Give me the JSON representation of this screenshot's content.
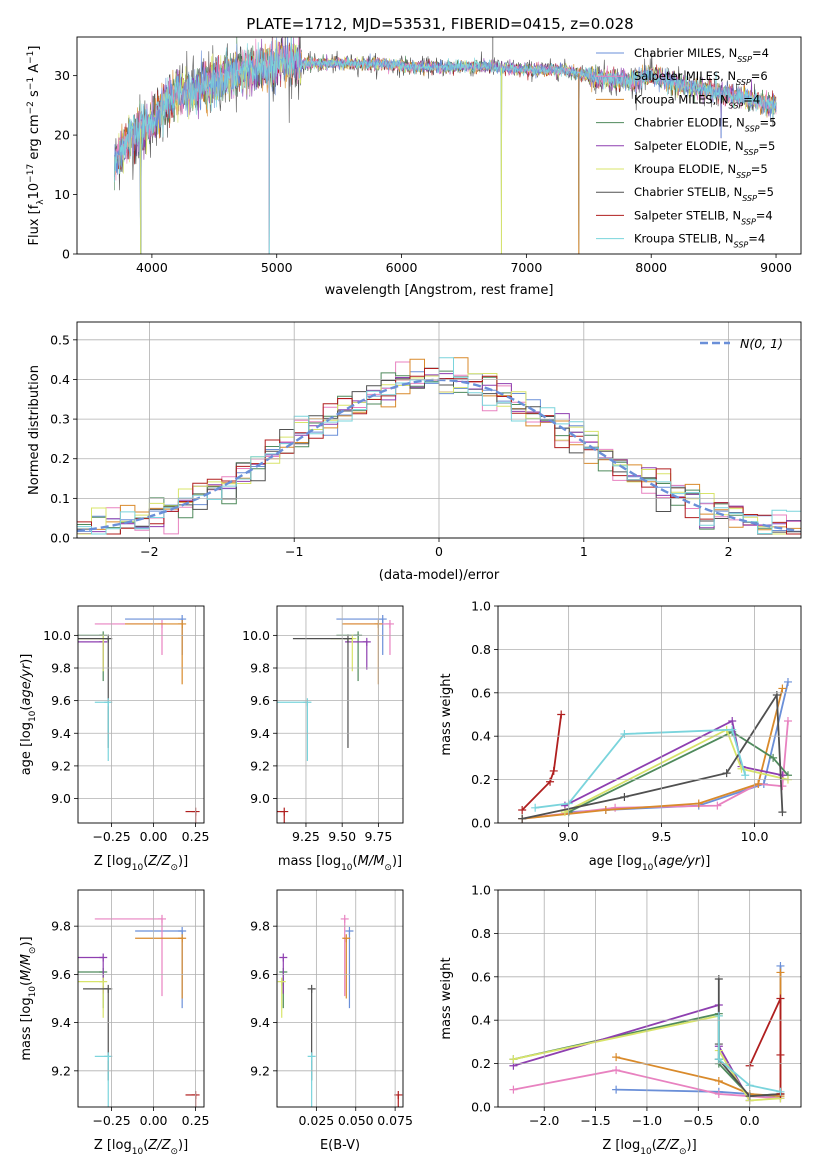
{
  "figure": {
    "title": "PLATE=1712, MJD=53531, FIBERID=0415, z=0.028"
  },
  "chart_data": [
    {
      "id": "spectrum",
      "type": "line",
      "xlabel": "wavelength [Angstrom, rest frame]",
      "ylabel": "Flux [f_λ 10^-17 erg cm^-2 s^-1 A^-1]",
      "xlim": [
        3400,
        9200
      ],
      "ylim": [
        0,
        36.5
      ],
      "xticks": [
        4000,
        5000,
        6000,
        7000,
        8000,
        9000
      ],
      "yticks": [
        0,
        10,
        20,
        30
      ],
      "grid": false,
      "legend_position": "top-right",
      "legend": [
        {
          "label": "Chabrier MILES, N",
          "sub": "SSP",
          "tail": "=4",
          "color": "#6a8fd8"
        },
        {
          "label": "Salpeter MILES, N",
          "sub": "SSP",
          "tail": "=6",
          "color": "#e882c0"
        },
        {
          "label": "Kroupa MILES, N",
          "sub": "SSP",
          "tail": "=4",
          "color": "#d98a2b"
        },
        {
          "label": "Chabrier ELODIE, N",
          "sub": "SSP",
          "tail": "=5",
          "color": "#4f8a5c"
        },
        {
          "label": "Salpeter ELODIE, N",
          "sub": "SSP",
          "tail": "=5",
          "color": "#8e3fb0"
        },
        {
          "label": "Kroupa ELODIE, N",
          "sub": "SSP",
          "tail": "=5",
          "color": "#d8e46a"
        },
        {
          "label": "Chabrier STELIB, N",
          "sub": "SSP",
          "tail": "=5",
          "color": "#505050"
        },
        {
          "label": "Salpeter STELIB, N",
          "sub": "SSP",
          "tail": "=4",
          "color": "#b01f1f"
        },
        {
          "label": "Kroupa STELIB, N",
          "sub": "SSP",
          "tail": "=4",
          "color": "#7ad4dc"
        }
      ],
      "shape": {
        "x": [
          3700,
          3800,
          3900,
          4000,
          4100,
          4200,
          4300,
          4400,
          4500,
          4600,
          4800,
          5000,
          5200,
          5500,
          5800,
          6100,
          6400,
          6700,
          7000,
          7300,
          7500,
          7800,
          8000,
          8300,
          8600,
          8800,
          9000
        ],
        "y": [
          15,
          19,
          21,
          22,
          25,
          27,
          27,
          28,
          29,
          30,
          31,
          32,
          32,
          32,
          32,
          31.5,
          31.5,
          31.5,
          31,
          31,
          30,
          29,
          30,
          28,
          27,
          26,
          25
        ]
      },
      "drops": [
        {
          "x": 3910,
          "y": 0
        },
        {
          "x": 4940,
          "y": 0
        },
        {
          "x": 6800,
          "y": 0
        },
        {
          "x": 7420,
          "y": 0
        },
        {
          "x": 8560,
          "y": 19.5
        }
      ]
    },
    {
      "id": "residuals",
      "type": "histogram",
      "xlabel": "(data-model)/error",
      "ylabel": "Normed distribution",
      "xlim": [
        -2.5,
        2.5
      ],
      "ylim": [
        0,
        0.545
      ],
      "xticks": [
        -2,
        -1,
        0,
        1,
        2
      ],
      "yticks": [
        0.0,
        0.1,
        0.2,
        0.3,
        0.4,
        0.5
      ],
      "grid": true,
      "legend_position": "top-right",
      "reference_label": "N(0, 1)",
      "reference_color": "#6a8fd8",
      "bin_width": 0.1
    },
    {
      "id": "age-vs-Z",
      "type": "scatter",
      "xlabel": "Z [log10(Z/Z☉)]",
      "ylabel": "age  [log10(age/yr)]",
      "xlim": [
        -0.45,
        0.3
      ],
      "ylim": [
        8.85,
        10.18
      ],
      "xticks": [
        -0.25,
        0.0,
        0.25
      ],
      "yticks": [
        9.0,
        9.2,
        9.4,
        9.6,
        9.8,
        10.0
      ],
      "grid": true,
      "points": [
        {
          "x": 0.17,
          "y": 10.1,
          "dx": 0.34,
          "dy": 0.22,
          "color": "#6a8fd8"
        },
        {
          "x": 0.05,
          "y": 10.07,
          "dx": 0.4,
          "dy": 0.19,
          "color": "#e882c0"
        },
        {
          "x": 0.17,
          "y": 10.07,
          "dx": 0.34,
          "dy": 0.37,
          "color": "#d98a2b"
        },
        {
          "x": -0.3,
          "y": 10.0,
          "dx": 0.15,
          "dy": 0.28,
          "color": "#4f8a5c"
        },
        {
          "x": -0.3,
          "y": 9.96,
          "dx": 0.15,
          "dy": 0.17,
          "color": "#8e3fb0"
        },
        {
          "x": -0.3,
          "y": 9.98,
          "dx": 0.15,
          "dy": 0.2,
          "color": "#d8e46a"
        },
        {
          "x": -0.27,
          "y": 9.98,
          "dx": 0.2,
          "dy": 0.67,
          "color": "#505050"
        },
        {
          "x": 0.25,
          "y": 8.92,
          "dx": 0.06,
          "dy": 0.48,
          "color": "#b01f1f"
        },
        {
          "x": -0.27,
          "y": 9.59,
          "dx": 0.08,
          "dy": 0.36,
          "color": "#7ad4dc"
        }
      ]
    },
    {
      "id": "age-vs-mass",
      "type": "scatter",
      "xlabel": "mass [log10(M/M☉)]",
      "ylabel": "",
      "xlim": [
        9.05,
        9.92
      ],
      "ylim": [
        8.85,
        10.18
      ],
      "xticks": [
        9.25,
        9.5,
        9.75
      ],
      "yticks": [
        9.0,
        9.2,
        9.4,
        9.6,
        9.8,
        10.0
      ],
      "grid": true,
      "points": [
        {
          "x": 9.78,
          "y": 10.1,
          "dx": 0.32,
          "dy": 0.22,
          "color": "#6a8fd8"
        },
        {
          "x": 9.83,
          "y": 10.07,
          "dx": 0.32,
          "dy": 0.19,
          "color": "#e882c0"
        },
        {
          "x": 9.75,
          "y": 10.07,
          "dx": 0.25,
          "dy": 0.37,
          "color": "#d98a2b"
        },
        {
          "x": 9.61,
          "y": 10.0,
          "dx": 0.15,
          "dy": 0.28,
          "color": "#4f8a5c"
        },
        {
          "x": 9.67,
          "y": 9.96,
          "dx": 0.15,
          "dy": 0.17,
          "color": "#8e3fb0"
        },
        {
          "x": 9.57,
          "y": 9.98,
          "dx": 0.15,
          "dy": 0.2,
          "color": "#d8e46a"
        },
        {
          "x": 9.54,
          "y": 9.98,
          "dx": 0.38,
          "dy": 0.67,
          "color": "#505050"
        },
        {
          "x": 9.1,
          "y": 8.92,
          "dx": 0.1,
          "dy": 0.48,
          "color": "#b01f1f"
        },
        {
          "x": 9.26,
          "y": 9.59,
          "dx": 0.22,
          "dy": 0.36,
          "color": "#7ad4dc"
        }
      ]
    },
    {
      "id": "weight-vs-age",
      "type": "line",
      "xlabel": "age  [log10(age/yr)]",
      "ylabel": "mass weight",
      "xlim": [
        8.62,
        10.25
      ],
      "ylim": [
        0,
        1.0
      ],
      "xticks": [
        9.0,
        9.5,
        10.0
      ],
      "yticks": [
        0.0,
        0.2,
        0.4,
        0.6,
        0.8,
        1.0
      ],
      "grid": true,
      "series": [
        {
          "color": "#6a8fd8",
          "x": [
            9.0,
            9.2,
            9.7,
            10.05,
            10.18
          ],
          "y": [
            0.05,
            0.06,
            0.08,
            0.18,
            0.65
          ]
        },
        {
          "color": "#e882c0",
          "x": [
            8.75,
            9.25,
            9.8,
            10.02,
            10.15,
            10.18
          ],
          "y": [
            0.02,
            0.07,
            0.08,
            0.18,
            0.17,
            0.47
          ]
        },
        {
          "color": "#d98a2b",
          "x": [
            8.75,
            9.2,
            9.7,
            10.02,
            10.15
          ],
          "y": [
            0.02,
            0.06,
            0.09,
            0.18,
            0.62
          ]
        },
        {
          "color": "#4f8a5c",
          "x": [
            9.0,
            9.88,
            10.1,
            10.18
          ],
          "y": [
            0.05,
            0.42,
            0.3,
            0.22
          ]
        },
        {
          "color": "#8e3fb0",
          "x": [
            8.98,
            9.88,
            9.93,
            10.15
          ],
          "y": [
            0.08,
            0.47,
            0.26,
            0.22
          ]
        },
        {
          "color": "#d8e46a",
          "x": [
            8.98,
            9.85,
            9.93,
            10.18
          ],
          "y": [
            0.05,
            0.43,
            0.25,
            0.2
          ]
        },
        {
          "color": "#505050",
          "x": [
            8.75,
            9.3,
            9.85,
            10.12,
            10.15
          ],
          "y": [
            0.02,
            0.12,
            0.23,
            0.59,
            0.05
          ]
        },
        {
          "color": "#b01f1f",
          "x": [
            8.75,
            8.9,
            8.92,
            8.96
          ],
          "y": [
            0.06,
            0.19,
            0.24,
            0.5
          ]
        },
        {
          "color": "#7ad4dc",
          "x": [
            8.82,
            9.0,
            9.3,
            9.88,
            9.95
          ],
          "y": [
            0.07,
            0.09,
            0.41,
            0.43,
            0.22
          ]
        }
      ]
    },
    {
      "id": "mass-vs-Z",
      "type": "scatter",
      "xlabel": "Z [log10(Z/Z☉)]",
      "ylabel": "mass [log10(M/M☉)]",
      "xlim": [
        -0.45,
        0.3
      ],
      "ylim": [
        9.05,
        9.95
      ],
      "xticks": [
        -0.25,
        0.0,
        0.25
      ],
      "yticks": [
        9.2,
        9.4,
        9.6,
        9.8
      ],
      "grid": true,
      "points": [
        {
          "x": 0.17,
          "y": 9.78,
          "dx": 0.28,
          "dy": 0.32,
          "color": "#6a8fd8"
        },
        {
          "x": 0.05,
          "y": 9.83,
          "dx": 0.4,
          "dy": 0.32,
          "color": "#e882c0"
        },
        {
          "x": 0.17,
          "y": 9.75,
          "dx": 0.28,
          "dy": 0.25,
          "color": "#d98a2b"
        },
        {
          "x": -0.3,
          "y": 9.61,
          "dx": 0.15,
          "dy": 0.15,
          "color": "#4f8a5c"
        },
        {
          "x": -0.3,
          "y": 9.67,
          "dx": 0.15,
          "dy": 0.15,
          "color": "#8e3fb0"
        },
        {
          "x": -0.3,
          "y": 9.57,
          "dx": 0.2,
          "dy": 0.15,
          "color": "#d8e46a"
        },
        {
          "x": -0.27,
          "y": 9.54,
          "dx": 0.15,
          "dy": 0.38,
          "color": "#505050"
        },
        {
          "x": 0.25,
          "y": 9.1,
          "dx": 0.06,
          "dy": 0.1,
          "color": "#b01f1f"
        },
        {
          "x": -0.27,
          "y": 9.26,
          "dx": 0.08,
          "dy": 0.22,
          "color": "#7ad4dc"
        }
      ]
    },
    {
      "id": "mass-vs-ebv",
      "type": "scatter",
      "xlabel": "E(B-V)",
      "ylabel": "",
      "xlim": [
        0.0,
        0.08
      ],
      "ylim": [
        9.05,
        9.95
      ],
      "xticks": [
        0.025,
        0.05,
        0.075
      ],
      "yticks": [
        9.2,
        9.4,
        9.6,
        9.8
      ],
      "grid": true,
      "points": [
        {
          "x": 0.046,
          "y": 9.78,
          "dx": 0.0,
          "dy": 0.32,
          "color": "#6a8fd8"
        },
        {
          "x": 0.043,
          "y": 9.83,
          "dx": 0.0,
          "dy": 0.32,
          "color": "#e882c0"
        },
        {
          "x": 0.044,
          "y": 9.75,
          "dx": 0.0,
          "dy": 0.25,
          "color": "#d98a2b"
        },
        {
          "x": 0.004,
          "y": 9.61,
          "dx": 0.0,
          "dy": 0.15,
          "color": "#4f8a5c"
        },
        {
          "x": 0.004,
          "y": 9.67,
          "dx": 0.0,
          "dy": 0.15,
          "color": "#8e3fb0"
        },
        {
          "x": 0.003,
          "y": 9.57,
          "dx": 0.0,
          "dy": 0.15,
          "color": "#d8e46a"
        },
        {
          "x": 0.022,
          "y": 9.54,
          "dx": 0.0,
          "dy": 0.38,
          "color": "#505050"
        },
        {
          "x": 0.077,
          "y": 9.1,
          "dx": 0.0,
          "dy": 0.1,
          "color": "#b01f1f"
        },
        {
          "x": 0.022,
          "y": 9.26,
          "dx": 0.0,
          "dy": 0.22,
          "color": "#7ad4dc"
        }
      ]
    },
    {
      "id": "weight-vs-Z",
      "type": "line",
      "xlabel": "Z [log10(Z/Z☉)]",
      "ylabel": "mass weight",
      "xlim": [
        -2.45,
        0.5
      ],
      "ylim": [
        0,
        1.0
      ],
      "xticks": [
        -2.0,
        -1.5,
        -1.0,
        -0.5,
        0.0
      ],
      "yticks": [
        0.0,
        0.2,
        0.4,
        0.6,
        0.8,
        1.0
      ],
      "grid": true,
      "series": [
        {
          "color": "#6a8fd8",
          "x": [
            -1.3,
            -0.3,
            0.0,
            0.3,
            0.3
          ],
          "y": [
            0.08,
            0.07,
            0.06,
            0.04,
            0.65
          ]
        },
        {
          "color": "#e882c0",
          "x": [
            -2.3,
            -1.3,
            -0.3,
            0.0,
            0.3
          ],
          "y": [
            0.08,
            0.17,
            0.06,
            0.05,
            0.04
          ]
        },
        {
          "color": "#d98a2b",
          "x": [
            -1.3,
            -0.3,
            0.0,
            0.3,
            0.3
          ],
          "y": [
            0.23,
            0.12,
            0.06,
            0.05,
            0.62
          ]
        },
        {
          "color": "#4f8a5c",
          "x": [
            -2.3,
            -0.3,
            -0.3,
            0.0,
            0.3
          ],
          "y": [
            0.22,
            0.43,
            0.2,
            0.05,
            0.06
          ]
        },
        {
          "color": "#8e3fb0",
          "x": [
            -2.3,
            -0.3,
            -0.3,
            0.0
          ],
          "y": [
            0.19,
            0.47,
            0.28,
            0.03
          ]
        },
        {
          "color": "#d8e46a",
          "x": [
            -2.3,
            -0.3,
            -0.3,
            0.0,
            0.3
          ],
          "y": [
            0.22,
            0.42,
            0.26,
            0.03,
            0.04
          ]
        },
        {
          "color": "#505050",
          "x": [
            -0.3,
            -0.3,
            -0.3,
            0.0,
            0.3
          ],
          "y": [
            0.59,
            0.29,
            0.22,
            0.05,
            0.06
          ]
        },
        {
          "color": "#b01f1f",
          "x": [
            0.0,
            0.3,
            0.3,
            0.3
          ],
          "y": [
            0.19,
            0.5,
            0.24,
            0.06
          ]
        },
        {
          "color": "#7ad4dc",
          "x": [
            -0.3,
            -0.3,
            0.0,
            0.3
          ],
          "y": [
            0.42,
            0.22,
            0.1,
            0.07
          ]
        }
      ]
    }
  ]
}
